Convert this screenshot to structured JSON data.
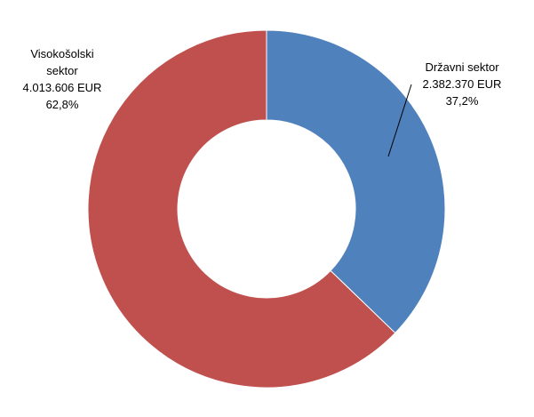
{
  "chart_data": {
    "type": "donut",
    "categories": [
      "Državni sektor",
      "Visokošolski sektor"
    ],
    "values": [
      37.2,
      62.8
    ],
    "value_labels": [
      "37,2%",
      "62,8%"
    ],
    "amounts": [
      2382370,
      4013606
    ],
    "amount_labels": [
      "2.382.370 EUR",
      "4.013.606 EUR"
    ],
    "colors": [
      "#4f81bd",
      "#c0504d"
    ]
  }
}
